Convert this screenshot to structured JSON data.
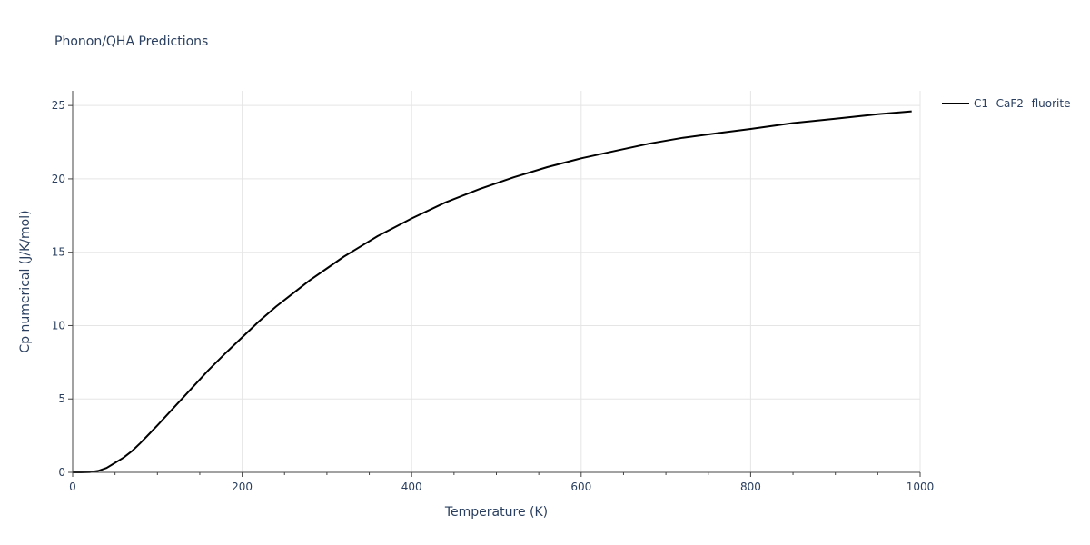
{
  "chart_data": {
    "type": "line",
    "title": "Phonon/QHA Predictions",
    "xlabel": "Temperature (K)",
    "ylabel": "Cp numerical (J/K/mol)",
    "xlim": [
      0,
      1000
    ],
    "ylim": [
      0,
      26
    ],
    "xticks": [
      0,
      200,
      400,
      600,
      800,
      1000
    ],
    "yticks": [
      0,
      5,
      10,
      15,
      20,
      25
    ],
    "x_minor_step": 50,
    "grid": true,
    "legend_position": "top-right",
    "series": [
      {
        "name": "C1--CaF2--fluorite",
        "color": "#000000",
        "x": [
          0,
          10,
          20,
          30,
          40,
          50,
          60,
          70,
          80,
          90,
          100,
          120,
          140,
          160,
          180,
          200,
          220,
          240,
          260,
          280,
          300,
          320,
          340,
          360,
          380,
          400,
          440,
          480,
          520,
          560,
          600,
          640,
          680,
          720,
          760,
          800,
          850,
          900,
          950,
          990
        ],
        "y": [
          0,
          0,
          0.02,
          0.1,
          0.3,
          0.65,
          1.0,
          1.45,
          2.0,
          2.6,
          3.2,
          4.45,
          5.7,
          6.95,
          8.1,
          9.2,
          10.3,
          11.3,
          12.2,
          13.1,
          13.9,
          14.7,
          15.4,
          16.1,
          16.7,
          17.3,
          18.4,
          19.3,
          20.1,
          20.8,
          21.4,
          21.9,
          22.4,
          22.8,
          23.1,
          23.4,
          23.8,
          24.1,
          24.4,
          24.6
        ]
      }
    ]
  }
}
